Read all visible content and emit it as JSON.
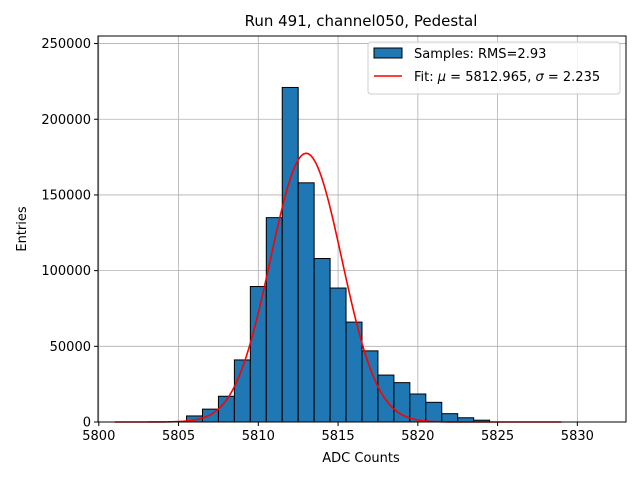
{
  "chart_data": {
    "type": "bar",
    "title": "Run 491, channel050, Pedestal",
    "xlabel": "ADC Counts",
    "ylabel": "Entries",
    "xlim": [
      5799.95,
      5833.05
    ],
    "ylim": [
      0,
      255000
    ],
    "xticks": [
      5800,
      5805,
      5810,
      5815,
      5820,
      5825,
      5830
    ],
    "yticks": [
      0,
      50000,
      100000,
      150000,
      200000,
      250000
    ],
    "grid": true,
    "legend_position": "top-right",
    "histogram": {
      "name": "Samples: RMS=2.93",
      "bin_width": 1,
      "color": "#1f77b4",
      "edge_color": "#000000",
      "bins": [
        {
          "x": 5806,
          "count": 4000
        },
        {
          "x": 5807,
          "count": 8500
        },
        {
          "x": 5808,
          "count": 17000
        },
        {
          "x": 5809,
          "count": 41000
        },
        {
          "x": 5810,
          "count": 89500
        },
        {
          "x": 5811,
          "count": 135000
        },
        {
          "x": 5812,
          "count": 221000
        },
        {
          "x": 5813,
          "count": 158000
        },
        {
          "x": 5814,
          "count": 108000
        },
        {
          "x": 5815,
          "count": 88500
        },
        {
          "x": 5816,
          "count": 66000
        },
        {
          "x": 5817,
          "count": 47000
        },
        {
          "x": 5818,
          "count": 31000
        },
        {
          "x": 5819,
          "count": 26000
        },
        {
          "x": 5820,
          "count": 18500
        },
        {
          "x": 5821,
          "count": 13000
        },
        {
          "x": 5822,
          "count": 5500
        },
        {
          "x": 5823,
          "count": 2800
        },
        {
          "x": 5824,
          "count": 1200
        }
      ]
    },
    "fit": {
      "name_prefix": "Fit: ",
      "name_mu": "μ",
      "name_mid": " = 5812.965, ",
      "name_sigma": "σ",
      "name_suffix": " = 2.235",
      "color": "#ff0000",
      "mu": 5813.0,
      "sigma": 2.235,
      "amplitude": 177500,
      "x_range": [
        5801,
        5829
      ]
    }
  }
}
